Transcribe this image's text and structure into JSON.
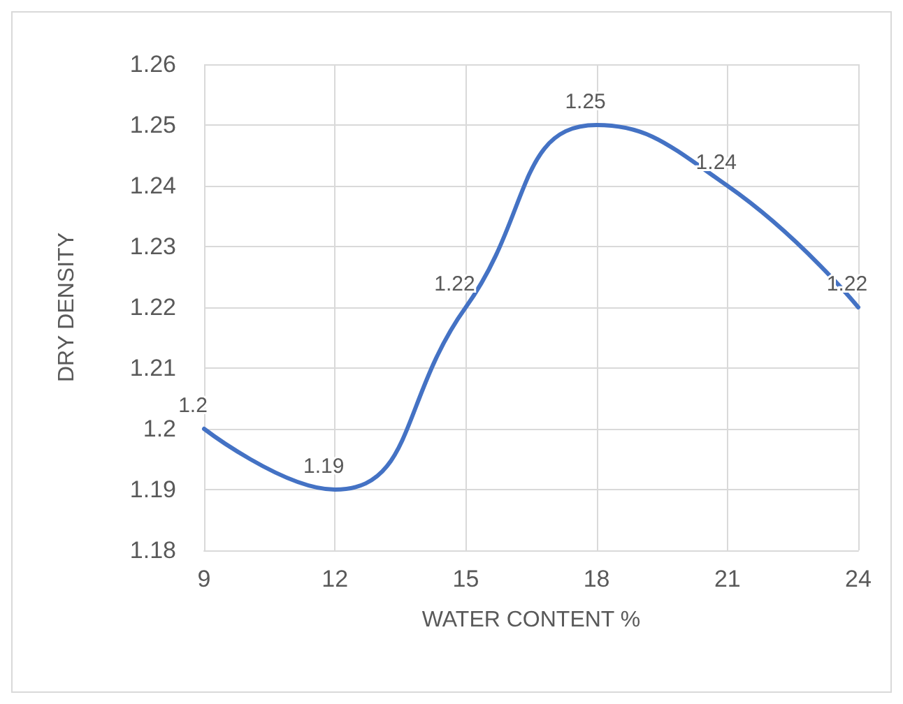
{
  "chart_data": {
    "type": "line",
    "xlabel": "WATER CONTENT %",
    "ylabel": "DRY DENSITY",
    "x": [
      9,
      12,
      15,
      18,
      21,
      24
    ],
    "series": [
      {
        "color": "#4472c4",
        "values": [
          1.2,
          1.19,
          1.22,
          1.25,
          1.24,
          1.22
        ]
      }
    ],
    "xlim": [
      9,
      24
    ],
    "xticks": [
      9,
      12,
      15,
      18,
      21,
      24
    ],
    "ylim": [
      1.18,
      1.26
    ],
    "yticks": [
      1.18,
      1.19,
      1.2,
      1.21,
      1.22,
      1.23,
      1.24,
      1.25,
      1.26
    ],
    "grid": true,
    "marker": "none",
    "line_style": "solid",
    "data_labels": true
  }
}
